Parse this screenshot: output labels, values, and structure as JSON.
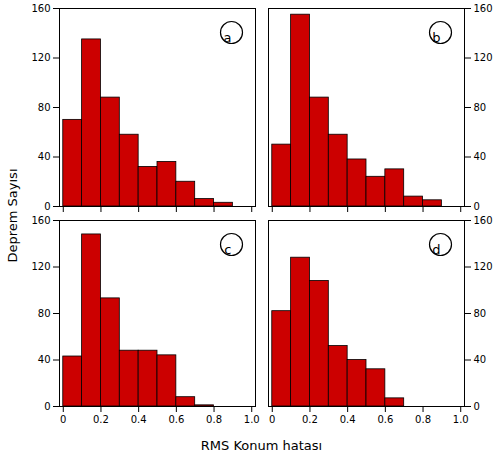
{
  "chart_data": [
    {
      "type": "histogram",
      "annotations": [
        "a"
      ],
      "ylabel": "Deprem Sayısı",
      "bins": [
        0.0,
        0.1,
        0.2,
        0.3,
        0.4,
        0.5,
        0.6,
        0.7,
        0.8,
        0.9
      ],
      "values": [
        70,
        135,
        88,
        58,
        32,
        36,
        20,
        6,
        3
      ],
      "color": "#CC0000",
      "xlim": [
        -0.02,
        1.02
      ],
      "ylim": [
        0,
        160
      ],
      "xticks": [
        0,
        0.2,
        0.4,
        0.6,
        0.8,
        {
          "value": 1,
          "label": "1.0"
        }
      ],
      "yticks": [
        0,
        40,
        80,
        120,
        160
      ],
      "tick_labels": "y"
    },
    {
      "type": "histogram",
      "annotations": [
        "b"
      ],
      "bins": [
        0.0,
        0.1,
        0.2,
        0.3,
        0.4,
        0.5,
        0.6,
        0.7,
        0.8,
        0.9
      ],
      "values": [
        50,
        155,
        88,
        58,
        38,
        24,
        30,
        8,
        5
      ],
      "color": "#CC0000",
      "xlim": [
        -0.02,
        1.02
      ],
      "ylim": [
        0,
        160
      ],
      "xticks": [
        0,
        0.2,
        0.4,
        0.6,
        0.8,
        {
          "value": 1,
          "label": "1.0"
        }
      ],
      "yticks": [
        0,
        40,
        80,
        120,
        160
      ],
      "tick_labels": "y"
    },
    {
      "type": "histogram",
      "annotations": [
        "c"
      ],
      "xlabel": "RMS Konum hatası",
      "bins": [
        0.0,
        0.1,
        0.2,
        0.3,
        0.4,
        0.5,
        0.6,
        0.7,
        0.8,
        0.9
      ],
      "values": [
        43,
        148,
        93,
        48,
        48,
        44,
        8,
        1,
        0
      ],
      "color": "#CC0000",
      "xlim": [
        -0.02,
        1.02
      ],
      "ylim": [
        0,
        160
      ],
      "xticks": [
        0,
        0.2,
        0.4,
        0.6,
        0.8,
        {
          "value": 1,
          "label": "1.0"
        }
      ],
      "yticks": [
        0,
        40,
        80,
        120,
        160
      ]
    },
    {
      "type": "histogram",
      "annotations": [
        "d"
      ],
      "bins": [
        0.0,
        0.1,
        0.2,
        0.3,
        0.4,
        0.5,
        0.6,
        0.7,
        0.8,
        0.9
      ],
      "values": [
        82,
        128,
        108,
        52,
        40,
        32,
        7,
        0,
        0
      ],
      "color": "#CC0000",
      "xlim": [
        -0.02,
        1.02
      ],
      "ylim": [
        0,
        160
      ],
      "xticks": [
        0,
        0.2,
        0.4,
        0.6,
        0.8,
        {
          "value": 1,
          "label": "1.0"
        }
      ],
      "yticks": [
        0,
        40,
        80,
        120,
        160
      ]
    }
  ]
}
